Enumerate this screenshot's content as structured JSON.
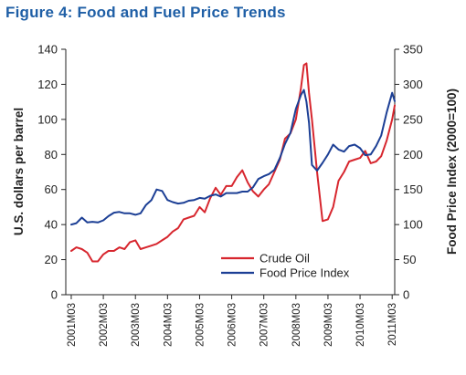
{
  "figure_title": "Figure 4: Food and Fuel Price Trends",
  "colors": {
    "title": "#1f5fa6",
    "crude_oil": "#d7262e",
    "food_index": "#1c3f95",
    "axis": "#222222"
  },
  "chart_data": {
    "type": "line",
    "title": "Figure 4: Food and Fuel Price Trends",
    "ylabel": "U.S. dollars per barrel",
    "y2label": "Food Price Index (2000=100)",
    "xlabel": "",
    "x_ticks": [
      "2001M03",
      "2002M03",
      "2003M03",
      "2004M03",
      "2005M03",
      "2006M03",
      "2007M03",
      "2008M03",
      "2009M03",
      "2010M03",
      "2011M03"
    ],
    "ylim": [
      0,
      140
    ],
    "y_ticks": [
      0,
      20,
      40,
      60,
      80,
      100,
      120,
      140
    ],
    "y2lim": [
      0,
      350
    ],
    "y2_ticks": [
      0,
      50,
      100,
      150,
      200,
      250,
      300,
      350
    ],
    "grid": false,
    "legend_position": "bottom-right",
    "series": [
      {
        "name": "Crude Oil",
        "axis": "left",
        "x": [
          2001.17,
          2001.33,
          2001.5,
          2001.67,
          2001.83,
          2002.0,
          2002.17,
          2002.33,
          2002.5,
          2002.67,
          2002.83,
          2003.0,
          2003.17,
          2003.33,
          2003.5,
          2003.67,
          2003.83,
          2004.0,
          2004.17,
          2004.33,
          2004.5,
          2004.67,
          2004.83,
          2005.0,
          2005.17,
          2005.33,
          2005.5,
          2005.67,
          2005.83,
          2006.0,
          2006.17,
          2006.33,
          2006.5,
          2006.67,
          2006.83,
          2007.0,
          2007.17,
          2007.33,
          2007.5,
          2007.67,
          2007.83,
          2008.0,
          2008.17,
          2008.33,
          2008.42,
          2008.5,
          2008.58,
          2008.67,
          2008.83,
          2009.0,
          2009.17,
          2009.33,
          2009.5,
          2009.67,
          2009.83,
          2010.0,
          2010.17,
          2010.33,
          2010.5,
          2010.67,
          2010.83,
          2011.0,
          2011.17,
          2011.25
        ],
        "values": [
          25,
          27,
          26,
          24,
          19,
          19,
          23,
          25,
          25,
          27,
          26,
          30,
          31,
          26,
          27,
          28,
          29,
          31,
          33,
          36,
          38,
          43,
          44,
          45,
          50,
          47,
          55,
          61,
          57,
          62,
          62,
          67,
          71,
          64,
          59,
          56,
          60,
          63,
          70,
          77,
          89,
          92,
          100,
          118,
          131,
          132,
          115,
          100,
          70,
          42,
          43,
          50,
          65,
          70,
          76,
          77,
          78,
          82,
          75,
          76,
          79,
          88,
          100,
          108
        ]
      },
      {
        "name": "Food Price Index",
        "axis": "right",
        "x": [
          2001.17,
          2001.33,
          2001.5,
          2001.67,
          2001.83,
          2002.0,
          2002.17,
          2002.33,
          2002.5,
          2002.67,
          2002.83,
          2003.0,
          2003.17,
          2003.33,
          2003.5,
          2003.67,
          2003.83,
          2004.0,
          2004.17,
          2004.33,
          2004.5,
          2004.67,
          2004.83,
          2005.0,
          2005.17,
          2005.33,
          2005.5,
          2005.67,
          2005.83,
          2006.0,
          2006.17,
          2006.33,
          2006.5,
          2006.67,
          2006.83,
          2007.0,
          2007.17,
          2007.33,
          2007.5,
          2007.67,
          2007.83,
          2008.0,
          2008.17,
          2008.33,
          2008.42,
          2008.5,
          2008.58,
          2008.67,
          2008.83,
          2009.0,
          2009.17,
          2009.33,
          2009.5,
          2009.67,
          2009.83,
          2010.0,
          2010.17,
          2010.33,
          2010.5,
          2010.67,
          2010.83,
          2011.0,
          2011.17,
          2011.25
        ],
        "values": [
          100,
          102,
          110,
          103,
          104,
          103,
          106,
          112,
          117,
          118,
          116,
          116,
          114,
          116,
          128,
          135,
          150,
          148,
          135,
          132,
          130,
          131,
          134,
          135,
          138,
          137,
          141,
          143,
          140,
          145,
          145,
          145,
          147,
          147,
          153,
          165,
          169,
          172,
          178,
          195,
          215,
          231,
          265,
          285,
          292,
          275,
          245,
          185,
          177,
          188,
          200,
          214,
          207,
          204,
          212,
          214,
          209,
          199,
          200,
          212,
          227,
          260,
          288,
          276
        ]
      }
    ]
  }
}
